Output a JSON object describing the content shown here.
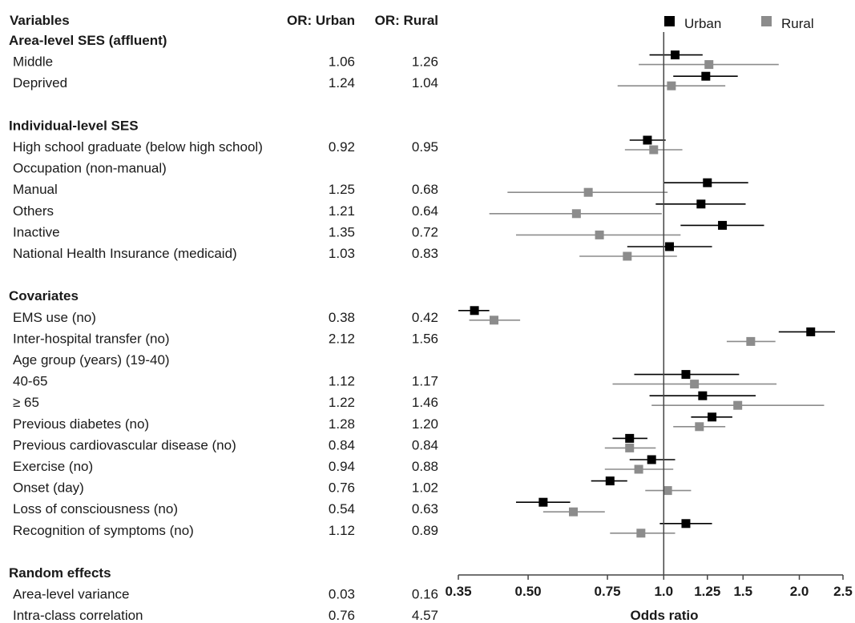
{
  "colors": {
    "urban": "#000000",
    "rural": "#8c8c8c",
    "axis": "#444444"
  },
  "chart_data": {
    "type": "forest",
    "columns": {
      "variable": "Variables",
      "urban": "OR: Urban",
      "rural": "OR: Rural"
    },
    "legend": {
      "placement": "top-right",
      "entries": [
        "Urban",
        "Rural"
      ]
    },
    "xlabel": "Odds ratio",
    "x_scale": "log",
    "xlim": [
      0.35,
      2.5
    ],
    "xticks": [
      0.35,
      0.5,
      0.75,
      1.0,
      1.25,
      1.5,
      2.0,
      2.5
    ],
    "xtick_labels": [
      "0.35",
      "0.50",
      "0.75",
      "1.0",
      "1.25",
      "1.5",
      "2.0",
      "2.5"
    ],
    "reference_line": 1.0,
    "rows": [
      {
        "label": "Area-level SES (affluent)",
        "kind": "header"
      },
      {
        "label": "Middle",
        "urban": "1.06",
        "rural": "1.26",
        "urban_ci": [
          0.93,
          1.22
        ],
        "rural_ci": [
          0.88,
          1.8
        ]
      },
      {
        "label": "Deprived",
        "urban": "1.24",
        "rural": "1.04",
        "urban_ci": [
          1.05,
          1.46
        ],
        "rural_ci": [
          0.79,
          1.37
        ]
      },
      {
        "kind": "spacer"
      },
      {
        "label": "Individual-level SES",
        "kind": "header"
      },
      {
        "label": "High school graduate (below high school)",
        "urban": "0.92",
        "rural": "0.95",
        "urban_ci": [
          0.84,
          1.01
        ],
        "rural_ci": [
          0.82,
          1.1
        ]
      },
      {
        "label": "Occupation (non-manual)",
        "kind": "subheader"
      },
      {
        "label": "Manual",
        "urban": "1.25",
        "rural": "0.68",
        "urban_ci": [
          1.0,
          1.54
        ],
        "rural_ci": [
          0.45,
          1.02
        ]
      },
      {
        "label": "Others",
        "urban": "1.21",
        "rural": "0.64",
        "urban_ci": [
          0.96,
          1.52
        ],
        "rural_ci": [
          0.41,
          0.99
        ]
      },
      {
        "label": "Inactive",
        "urban": "1.35",
        "rural": "0.72",
        "urban_ci": [
          1.09,
          1.67
        ],
        "rural_ci": [
          0.47,
          1.09
        ]
      },
      {
        "label": "National Health Insurance (medicaid)",
        "urban": "1.03",
        "rural": "0.83",
        "urban_ci": [
          0.83,
          1.28
        ],
        "rural_ci": [
          0.65,
          1.07
        ]
      },
      {
        "kind": "spacer"
      },
      {
        "label": "Covariates",
        "kind": "header"
      },
      {
        "label": "EMS use (no)",
        "urban": "0.38",
        "rural": "0.42",
        "urban_ci": [
          0.35,
          0.41
        ],
        "rural_ci": [
          0.37,
          0.48
        ]
      },
      {
        "label": "Inter-hospital transfer (no)",
        "urban": "2.12",
        "rural": "1.56",
        "urban_ci": [
          1.8,
          2.4
        ],
        "rural_ci": [
          1.38,
          1.77
        ]
      },
      {
        "label": "Age group (years) (19-40)",
        "kind": "subheader"
      },
      {
        "label": "40-65",
        "urban": "1.12",
        "rural": "1.17",
        "urban_ci": [
          0.86,
          1.47
        ],
        "rural_ci": [
          0.77,
          1.78
        ]
      },
      {
        "label": "≥ 65",
        "urban": "1.22",
        "rural": "1.46",
        "urban_ci": [
          0.93,
          1.6
        ],
        "rural_ci": [
          0.94,
          2.27
        ]
      },
      {
        "label": "Previous diabetes (no)",
        "urban": "1.28",
        "rural": "1.20",
        "urban_ci": [
          1.15,
          1.42
        ],
        "rural_ci": [
          1.05,
          1.37
        ]
      },
      {
        "label": "Previous cardiovascular disease (no)",
        "urban": "0.84",
        "rural": "0.84",
        "urban_ci": [
          0.77,
          0.92
        ],
        "rural_ci": [
          0.74,
          0.96
        ]
      },
      {
        "label": "Exercise (no)",
        "urban": "0.94",
        "rural": "0.88",
        "urban_ci": [
          0.84,
          1.06
        ],
        "rural_ci": [
          0.74,
          1.05
        ]
      },
      {
        "label": "Onset (day)",
        "urban": "0.76",
        "rural": "1.02",
        "urban_ci": [
          0.69,
          0.83
        ],
        "rural_ci": [
          0.91,
          1.15
        ]
      },
      {
        "label": "Loss of consciousness (no)",
        "urban": "0.54",
        "rural": "0.63",
        "urban_ci": [
          0.47,
          0.62
        ],
        "rural_ci": [
          0.54,
          0.74
        ]
      },
      {
        "label": "Recognition of symptoms (no)",
        "urban": "1.12",
        "rural": "0.89",
        "urban_ci": [
          0.98,
          1.28
        ],
        "rural_ci": [
          0.76,
          1.06
        ]
      },
      {
        "kind": "spacer"
      },
      {
        "label": "Random effects",
        "kind": "header"
      },
      {
        "label": "Area-level variance",
        "urban": "0.03",
        "rural": "0.16",
        "kind": "text"
      },
      {
        "label": "Intra-class correlation",
        "urban": "0.76",
        "rural": "4.57",
        "kind": "text"
      }
    ]
  }
}
